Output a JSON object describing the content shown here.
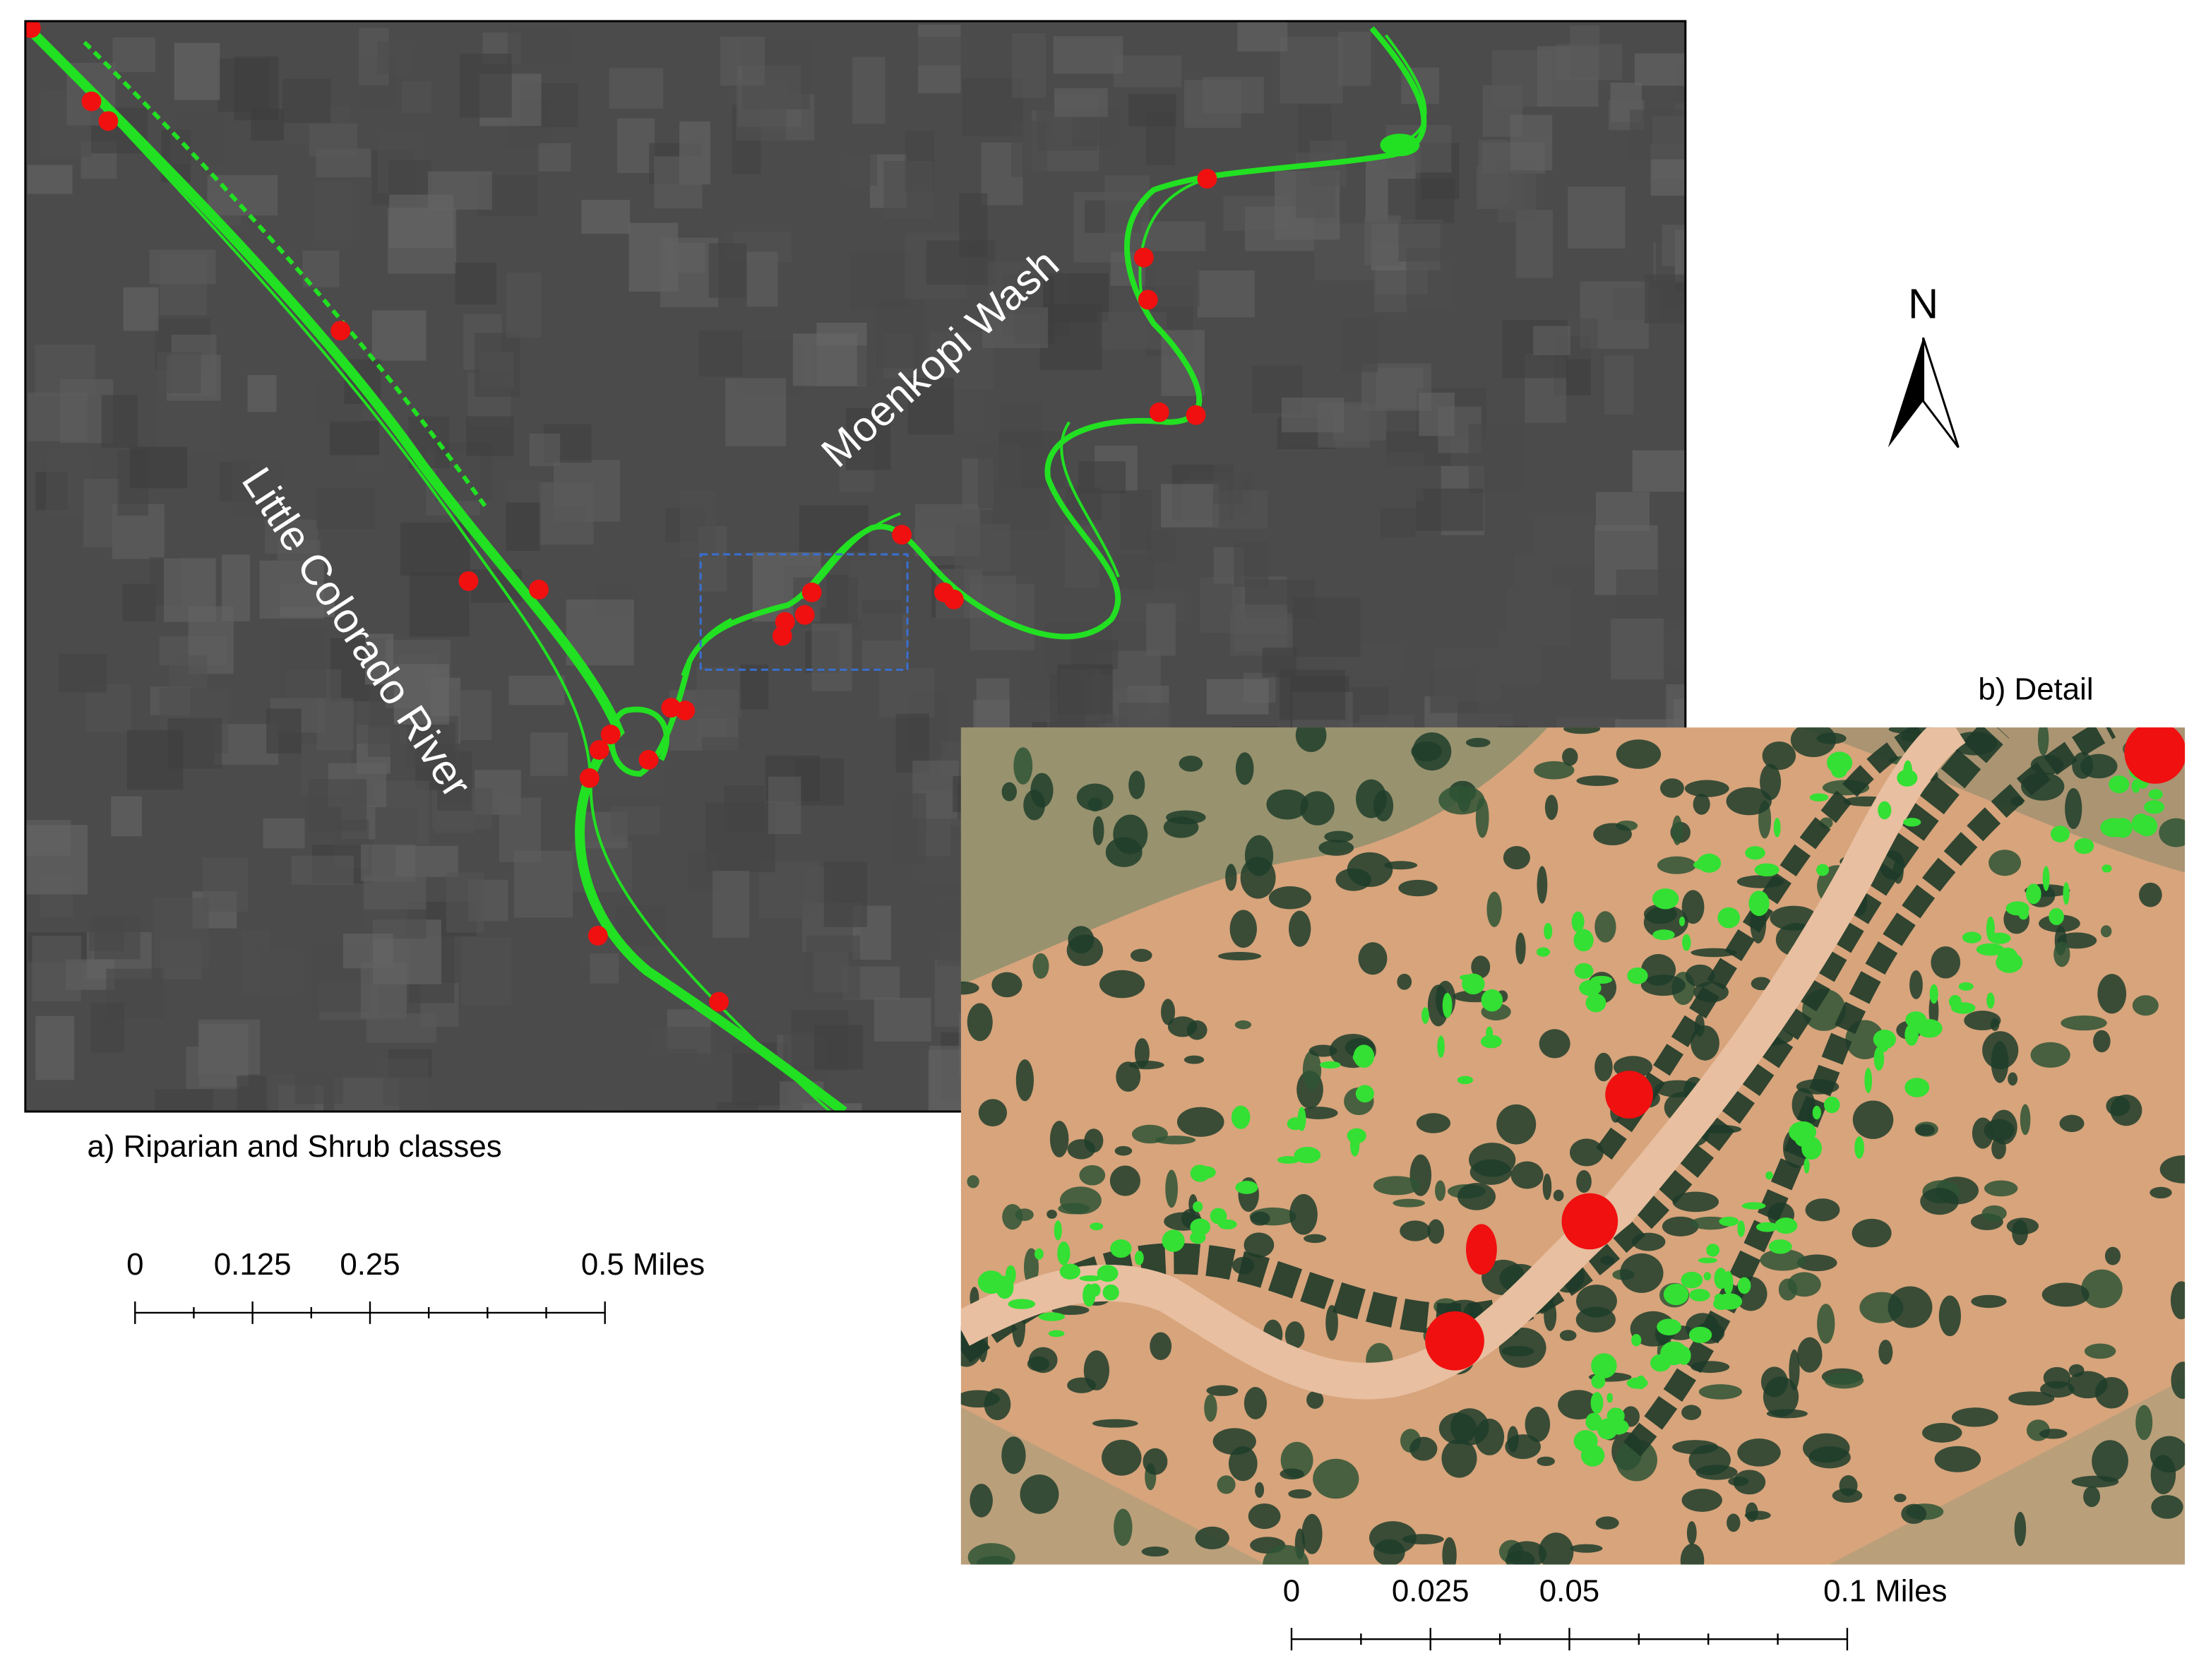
{
  "map": {
    "panel_a": {
      "caption": "a) Riparian and Shrub classes",
      "labels": [
        "Little Colorado River",
        "Moenkopi Wash"
      ],
      "scale_bar": [
        "0",
        "0.125",
        "0.25",
        "0.5 Miles"
      ]
    },
    "panel_b": {
      "caption": "b) Detail",
      "scale_bar": [
        "0",
        "0.025",
        "0.05",
        "0.1 Miles"
      ]
    },
    "north_arrow": "N"
  }
}
